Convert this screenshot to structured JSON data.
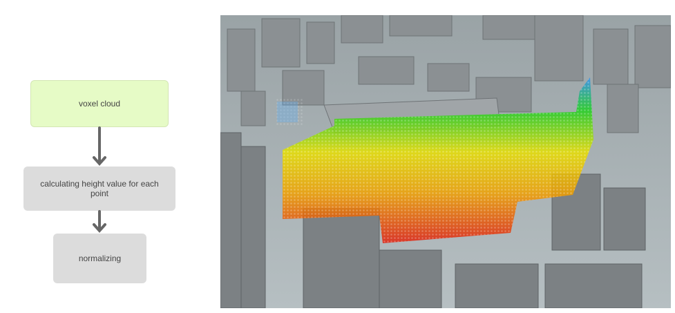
{
  "flow": {
    "steps": [
      {
        "label": "voxel cloud",
        "color": "#e6fbc6"
      },
      {
        "label": "calculating height value for each point",
        "color": "#dcdcdc"
      },
      {
        "label": "normalizing",
        "color": "#dcdcdc"
      }
    ],
    "arrow_color": "#666666"
  },
  "scene": {
    "description_icon": "point-cloud-city-render",
    "color_scale": [
      "#e02010",
      "#f0a000",
      "#e8e000",
      "#20d020",
      "#3090f0"
    ]
  }
}
